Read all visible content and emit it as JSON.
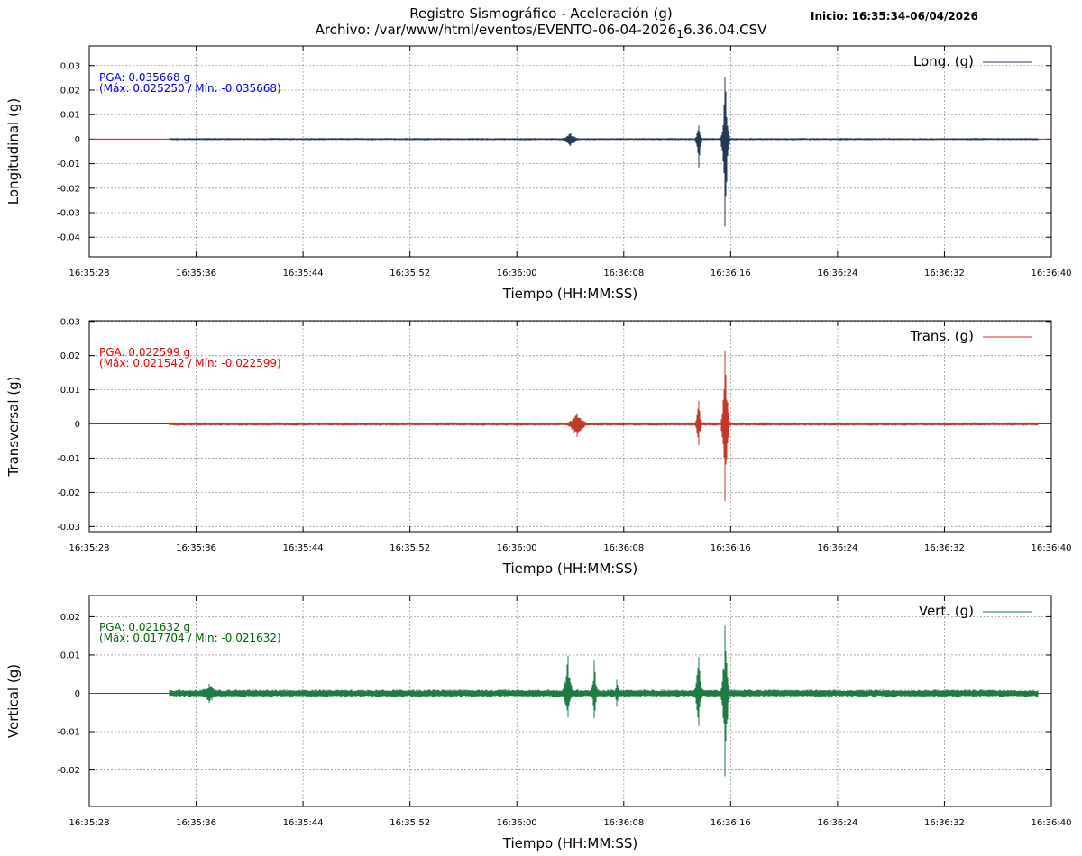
{
  "header": {
    "title_line1": "Registro Sismográfico - Aceleración (g)",
    "title_line2_prefix": "Archivo: /var/www/html/eventos/EVENTO-06-04-2026",
    "title_line2_sub": "1",
    "title_line2_suffix": "6.36.04.CSV",
    "inicio": "Inicio: 16:35:34-06/04/2026"
  },
  "colors": {
    "grid": "#999999",
    "zero_line": "#ff0000"
  },
  "chart_data": [
    {
      "type": "line",
      "ylabel": "Longitudinal (g)",
      "xlabel": "Tiempo (HH:MM:SS)",
      "x_ticks": [
        "16:35:28",
        "16:35:36",
        "16:35:44",
        "16:35:52",
        "16:36:00",
        "16:36:08",
        "16:36:16",
        "16:36:24",
        "16:36:32",
        "16:36:40"
      ],
      "y_ticks": [
        0.03,
        0.02,
        0.01,
        0,
        -0.01,
        -0.02,
        -0.03,
        -0.04
      ],
      "y_tick_labels": [
        "0.03",
        "0.02",
        "0.01",
        "0",
        "-0.01",
        "-0.02",
        "-0.03",
        "-0.04"
      ],
      "xlim": [
        "16:35:28",
        "16:36:40"
      ],
      "ylim": [
        -0.048,
        0.038
      ],
      "grid": true,
      "legend_position": "top-right",
      "series": [
        {
          "name": "Long. (g)",
          "color": "#233a52"
        }
      ],
      "data_start": "16:35:34",
      "data_end": "16:36:39",
      "noise_amplitude": 0.0004,
      "events": [
        {
          "time": "16:36:04",
          "duration_s": 2.0,
          "peak": 0.0025,
          "dip": -0.0035
        },
        {
          "time": "16:36:13.6",
          "duration_s": 0.8,
          "peak": 0.0055,
          "dip": -0.0115
        },
        {
          "time": "16:36:15.6",
          "duration_s": 0.9,
          "peak": 0.02525,
          "dip": -0.035668
        }
      ],
      "annotation": {
        "pga": "PGA: 0.035668 g",
        "range": "(Máx: 0.025250 / Mín: -0.035668)",
        "color": "#0000ee"
      }
    },
    {
      "type": "line",
      "ylabel": "Transversal (g)",
      "xlabel": "Tiempo (HH:MM:SS)",
      "x_ticks": [
        "16:35:28",
        "16:35:36",
        "16:35:44",
        "16:35:52",
        "16:36:00",
        "16:36:08",
        "16:36:16",
        "16:36:24",
        "16:36:32",
        "16:36:40"
      ],
      "y_ticks": [
        0.03,
        0.02,
        0.01,
        0,
        -0.01,
        -0.02,
        -0.03
      ],
      "y_tick_labels": [
        "0.03",
        "0.02",
        "0.01",
        "0",
        "-0.01",
        "-0.02",
        "-0.03"
      ],
      "xlim": [
        "16:35:28",
        "16:36:40"
      ],
      "ylim": [
        -0.0315,
        0.0302
      ],
      "grid": true,
      "legend_position": "top-right",
      "series": [
        {
          "name": "Trans. (g)",
          "color": "#c0392b"
        }
      ],
      "data_start": "16:35:34",
      "data_end": "16:36:39",
      "noise_amplitude": 0.00045,
      "events": [
        {
          "time": "16:36:04.5",
          "duration_s": 2.5,
          "peak": 0.0032,
          "dip": -0.0038
        },
        {
          "time": "16:36:13.6",
          "duration_s": 0.8,
          "peak": 0.0068,
          "dip": -0.0062
        },
        {
          "time": "16:36:15.6",
          "duration_s": 0.9,
          "peak": 0.021542,
          "dip": -0.022599
        }
      ],
      "annotation": {
        "pga": "PGA: 0.022599 g",
        "range": "(Máx: 0.021542 / Mín: -0.022599)",
        "color": "#ee0000"
      }
    },
    {
      "type": "line",
      "ylabel": "Vertical (g)",
      "xlabel": "Tiempo (HH:MM:SS)",
      "x_ticks": [
        "16:35:28",
        "16:35:36",
        "16:35:44",
        "16:35:52",
        "16:36:00",
        "16:36:08",
        "16:36:16",
        "16:36:24",
        "16:36:32",
        "16:36:40"
      ],
      "y_ticks": [
        0.02,
        0.01,
        0,
        -0.01,
        -0.02
      ],
      "y_tick_labels": [
        "0.02",
        "0.01",
        "0",
        "-0.01",
        "-0.02"
      ],
      "xlim": [
        "16:35:28",
        "16:36:40"
      ],
      "ylim": [
        -0.0295,
        0.0255
      ],
      "grid": true,
      "legend_position": "top-right",
      "series": [
        {
          "name": "Vert. (g)",
          "color": "#1e7b45"
        }
      ],
      "data_start": "16:35:34",
      "data_end": "16:36:39",
      "noise_amplitude": 0.0009,
      "events": [
        {
          "time": "16:35:37",
          "duration_s": 3.0,
          "peak": 0.0025,
          "dip": -0.0025
        },
        {
          "time": "16:36:03.8",
          "duration_s": 1.2,
          "peak": 0.0098,
          "dip": -0.0062
        },
        {
          "time": "16:36:05.8",
          "duration_s": 0.8,
          "peak": 0.0085,
          "dip": -0.0065
        },
        {
          "time": "16:36:07.5",
          "duration_s": 0.7,
          "peak": 0.0035,
          "dip": -0.0035
        },
        {
          "time": "16:36:13.6",
          "duration_s": 1.0,
          "peak": 0.0095,
          "dip": -0.0085
        },
        {
          "time": "16:36:15.6",
          "duration_s": 0.9,
          "peak": 0.017704,
          "dip": -0.021632
        }
      ],
      "annotation": {
        "pga": "PGA: 0.021632 g",
        "range": "(Máx: 0.017704 / Mín: -0.021632)",
        "color": "#006400"
      }
    }
  ]
}
